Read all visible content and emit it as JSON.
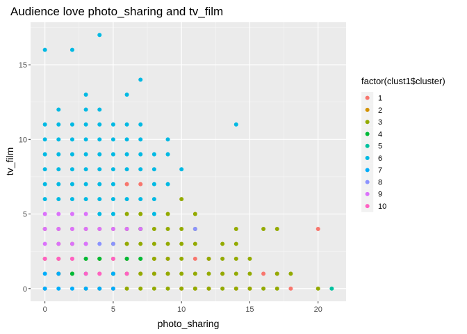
{
  "chart_data": {
    "type": "scatter",
    "title": "Audience love photo_sharing and tv_film",
    "xlabel": "photo_sharing",
    "ylabel": "tv_film",
    "xlim": [
      -1.05,
      22.05
    ],
    "ylim": [
      -0.85,
      17.85
    ],
    "xticks": [
      0,
      5,
      10,
      15,
      20
    ],
    "yticks": [
      0,
      5,
      10,
      15
    ],
    "grid": true,
    "legend": {
      "title": "factor(clust1$cluster)",
      "placement": "right"
    },
    "series": [
      {
        "name": "1",
        "color": "#F8766D",
        "points": [
          [
            0,
            0
          ],
          [
            1,
            1
          ],
          [
            2,
            2
          ],
          [
            2,
            4
          ],
          [
            3,
            3
          ],
          [
            4,
            1
          ],
          [
            5,
            0
          ],
          [
            6,
            2
          ],
          [
            6,
            7
          ],
          [
            7,
            7
          ],
          [
            8,
            1
          ],
          [
            9,
            2
          ],
          [
            10,
            0
          ],
          [
            11,
            2
          ],
          [
            12,
            0
          ],
          [
            12,
            2
          ],
          [
            13,
            1
          ],
          [
            14,
            0
          ],
          [
            15,
            0
          ],
          [
            16,
            1
          ],
          [
            17,
            1
          ],
          [
            18,
            0
          ],
          [
            20,
            4
          ]
        ]
      },
      {
        "name": "2",
        "color": "#D39200",
        "points": [
          [
            0,
            2
          ],
          [
            0,
            4
          ],
          [
            1,
            1
          ],
          [
            1,
            2
          ],
          [
            1,
            3
          ],
          [
            1,
            4
          ],
          [
            2,
            1
          ],
          [
            2,
            3
          ],
          [
            3,
            0
          ],
          [
            3,
            4
          ],
          [
            4,
            0
          ],
          [
            4,
            2
          ],
          [
            4,
            4
          ],
          [
            5,
            2
          ],
          [
            5,
            4
          ],
          [
            6,
            3
          ],
          [
            6,
            4
          ],
          [
            7,
            1
          ],
          [
            7,
            4
          ],
          [
            8,
            2
          ],
          [
            9,
            1
          ],
          [
            11,
            0
          ]
        ]
      },
      {
        "name": "3",
        "color": "#93AA00",
        "points": [
          [
            3,
            2
          ],
          [
            4,
            2
          ],
          [
            5,
            1
          ],
          [
            5,
            3
          ],
          [
            6,
            0
          ],
          [
            6,
            1
          ],
          [
            6,
            2
          ],
          [
            6,
            3
          ],
          [
            6,
            4
          ],
          [
            6,
            5
          ],
          [
            7,
            0
          ],
          [
            7,
            1
          ],
          [
            7,
            2
          ],
          [
            7,
            3
          ],
          [
            7,
            4
          ],
          [
            7,
            5
          ],
          [
            8,
            0
          ],
          [
            8,
            1
          ],
          [
            8,
            2
          ],
          [
            8,
            3
          ],
          [
            8,
            4
          ],
          [
            9,
            0
          ],
          [
            9,
            1
          ],
          [
            9,
            2
          ],
          [
            9,
            3
          ],
          [
            9,
            4
          ],
          [
            9,
            5
          ],
          [
            10,
            0
          ],
          [
            10,
            1
          ],
          [
            10,
            2
          ],
          [
            10,
            3
          ],
          [
            10,
            4
          ],
          [
            10,
            6
          ],
          [
            11,
            0
          ],
          [
            11,
            1
          ],
          [
            11,
            3
          ],
          [
            11,
            4
          ],
          [
            11,
            5
          ],
          [
            12,
            0
          ],
          [
            12,
            1
          ],
          [
            12,
            2
          ],
          [
            13,
            0
          ],
          [
            13,
            1
          ],
          [
            13,
            2
          ],
          [
            13,
            3
          ],
          [
            14,
            0
          ],
          [
            14,
            1
          ],
          [
            14,
            2
          ],
          [
            14,
            3
          ],
          [
            14,
            4
          ],
          [
            15,
            0
          ],
          [
            15,
            1
          ],
          [
            15,
            2
          ],
          [
            16,
            0
          ],
          [
            16,
            4
          ],
          [
            17,
            0
          ],
          [
            17,
            1
          ],
          [
            17,
            4
          ],
          [
            18,
            1
          ],
          [
            20,
            0
          ]
        ]
      },
      {
        "name": "4",
        "color": "#00BA38",
        "points": [
          [
            2,
            1
          ],
          [
            3,
            2
          ],
          [
            4,
            2
          ],
          [
            5,
            1
          ],
          [
            6,
            2
          ],
          [
            7,
            2
          ],
          [
            7,
            4
          ]
        ]
      },
      {
        "name": "5",
        "color": "#00C19F",
        "points": [
          [
            21,
            0
          ]
        ]
      },
      {
        "name": "6",
        "color": "#00B9E3",
        "points": [
          [
            0,
            6
          ],
          [
            0,
            7
          ],
          [
            0,
            8
          ],
          [
            0,
            9
          ],
          [
            0,
            10
          ],
          [
            0,
            11
          ],
          [
            0,
            16
          ],
          [
            1,
            6
          ],
          [
            1,
            7
          ],
          [
            1,
            8
          ],
          [
            1,
            9
          ],
          [
            1,
            10
          ],
          [
            1,
            11
          ],
          [
            1,
            12
          ],
          [
            2,
            6
          ],
          [
            2,
            7
          ],
          [
            2,
            8
          ],
          [
            2,
            9
          ],
          [
            2,
            10
          ],
          [
            2,
            11
          ],
          [
            2,
            16
          ],
          [
            3,
            6
          ],
          [
            3,
            7
          ],
          [
            3,
            8
          ],
          [
            3,
            9
          ],
          [
            3,
            10
          ],
          [
            3,
            11
          ],
          [
            3,
            12
          ],
          [
            3,
            13
          ],
          [
            4,
            5
          ],
          [
            4,
            6
          ],
          [
            4,
            7
          ],
          [
            4,
            8
          ],
          [
            4,
            9
          ],
          [
            4,
            10
          ],
          [
            4,
            11
          ],
          [
            4,
            12
          ],
          [
            4,
            17
          ],
          [
            5,
            5
          ],
          [
            5,
            6
          ],
          [
            5,
            7
          ],
          [
            5,
            8
          ],
          [
            5,
            9
          ],
          [
            5,
            10
          ],
          [
            5,
            11
          ],
          [
            6,
            6
          ],
          [
            6,
            8
          ],
          [
            6,
            9
          ],
          [
            6,
            10
          ],
          [
            6,
            11
          ],
          [
            6,
            13
          ],
          [
            7,
            6
          ],
          [
            7,
            8
          ],
          [
            7,
            9
          ],
          [
            7,
            10
          ],
          [
            7,
            11
          ],
          [
            7,
            14
          ],
          [
            8,
            5
          ],
          [
            8,
            6
          ],
          [
            8,
            7
          ],
          [
            8,
            8
          ],
          [
            8,
            9
          ],
          [
            9,
            7
          ],
          [
            9,
            9
          ],
          [
            9,
            10
          ],
          [
            10,
            8
          ],
          [
            14,
            11
          ]
        ]
      },
      {
        "name": "7",
        "color": "#00ADFA",
        "points": [
          [
            0,
            0
          ],
          [
            0,
            1
          ],
          [
            1,
            0
          ],
          [
            1,
            1
          ],
          [
            2,
            0
          ],
          [
            3,
            0
          ],
          [
            3,
            1
          ],
          [
            4,
            0
          ],
          [
            5,
            0
          ],
          [
            5,
            1
          ]
        ]
      },
      {
        "name": "8",
        "color": "#8B93FF",
        "points": [
          [
            3,
            3
          ],
          [
            4,
            3
          ],
          [
            5,
            3
          ],
          [
            11,
            4
          ]
        ]
      },
      {
        "name": "9",
        "color": "#DB72FB",
        "points": [
          [
            0,
            3
          ],
          [
            0,
            4
          ],
          [
            0,
            5
          ],
          [
            1,
            3
          ],
          [
            1,
            4
          ],
          [
            1,
            5
          ],
          [
            2,
            3
          ],
          [
            2,
            4
          ],
          [
            2,
            5
          ],
          [
            3,
            3
          ],
          [
            3,
            4
          ],
          [
            3,
            5
          ],
          [
            4,
            4
          ],
          [
            5,
            4
          ],
          [
            6,
            4
          ],
          [
            7,
            4
          ]
        ]
      },
      {
        "name": "10",
        "color": "#FF61C3",
        "points": [
          [
            0,
            2
          ],
          [
            1,
            2
          ],
          [
            2,
            2
          ],
          [
            3,
            1
          ],
          [
            4,
            1
          ],
          [
            5,
            2
          ],
          [
            6,
            1
          ]
        ]
      }
    ]
  }
}
